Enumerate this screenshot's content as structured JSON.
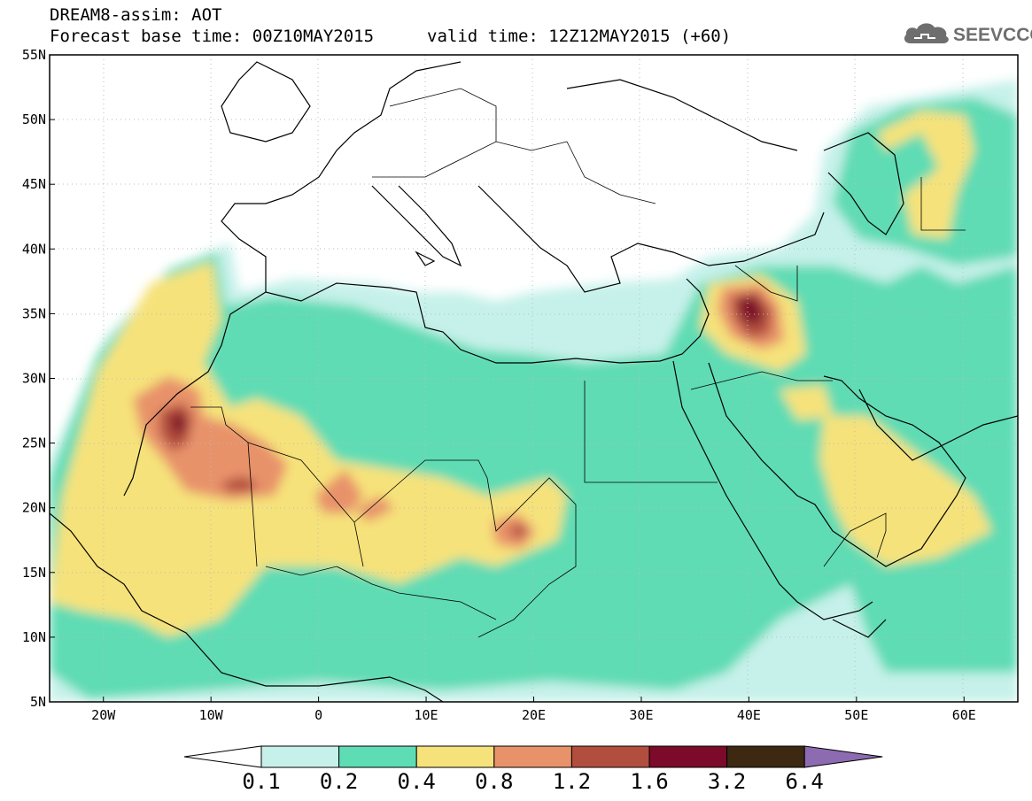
{
  "header": {
    "title": "DREAM8-assim: AOT",
    "base_time": "Forecast base time: 00Z10MAY2015",
    "valid_time": "valid time: 12Z12MAY2015 (+60)"
  },
  "logo": {
    "text": "SEEVCCC",
    "icon": "cloud-icon"
  },
  "map": {
    "lon_labels": [
      "20W",
      "10W",
      "0",
      "10E",
      "20E",
      "30E",
      "40E",
      "50E",
      "60E"
    ],
    "lat_labels": [
      "55N",
      "50N",
      "45N",
      "40N",
      "35N",
      "30N",
      "25N",
      "20N",
      "15N",
      "10N",
      "5N"
    ],
    "lon_range": [
      -25,
      65
    ],
    "lat_range": [
      5,
      55
    ]
  },
  "colorbar": {
    "labels": [
      "0.1",
      "0.2",
      "0.4",
      "0.8",
      "1.2",
      "1.6",
      "3.2",
      "6.4"
    ],
    "colors": [
      "#c6f1ea",
      "#5edcb4",
      "#f6e27a",
      "#e8926a",
      "#b24e3e",
      "#7c0a2a",
      "#3d2812",
      "#8c6bb0"
    ]
  }
}
